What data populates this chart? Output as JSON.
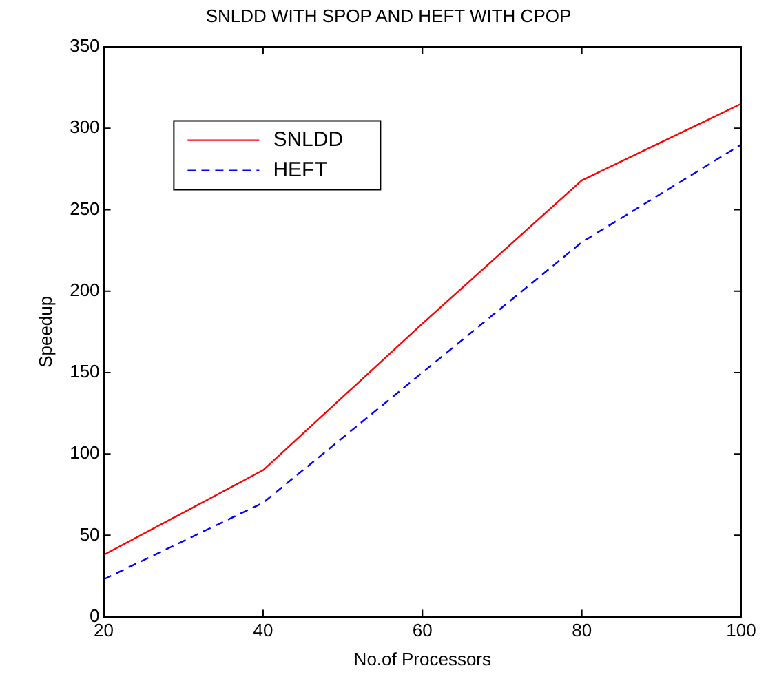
{
  "chart_data": {
    "type": "line",
    "title": "SNLDD WITH SPOP AND HEFT WITH CPOP",
    "xlabel": "No.of Processors",
    "ylabel": "Speedup",
    "x": [
      20,
      40,
      60,
      80,
      100
    ],
    "series": [
      {
        "name": "SNLDD",
        "color": "#ff0000",
        "line_style": "solid",
        "values": [
          38,
          90,
          180,
          268,
          315
        ]
      },
      {
        "name": "HEFT",
        "color": "#0000ff",
        "line_style": "dashed",
        "values": [
          23,
          70,
          150,
          230,
          290
        ]
      }
    ],
    "xlim": [
      20,
      100
    ],
    "xticks": [
      20,
      40,
      60,
      80,
      100
    ],
    "ylim": [
      0,
      350
    ],
    "yticks": [
      0,
      50,
      100,
      150,
      200,
      250,
      300,
      350
    ],
    "grid": false,
    "legend": "top left",
    "marker": "none"
  }
}
